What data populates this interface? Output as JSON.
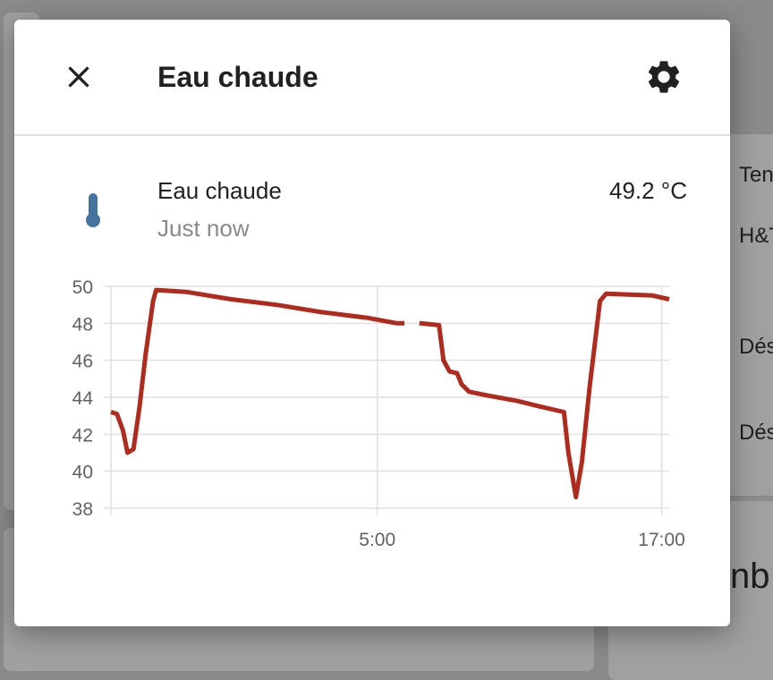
{
  "background": {
    "right_items": [
      "Ten",
      "H&T",
      "Dés",
      "Dés"
    ],
    "bottom_text": "nb"
  },
  "dialog": {
    "title": "Eau chaude",
    "close_icon": "close-icon",
    "settings_icon": "gear-icon"
  },
  "entity": {
    "icon": "thermometer-icon",
    "name": "Eau chaude",
    "last_changed": "Just now",
    "state": "49.2 °C"
  },
  "colors": {
    "line": "#b02a1e",
    "icon": "#44739e"
  },
  "chart_data": {
    "type": "line",
    "title": "",
    "xlabel": "",
    "ylabel": "",
    "ylim": [
      38,
      50
    ],
    "yticks": [
      50,
      48,
      46,
      44,
      42,
      40,
      38
    ],
    "xticks": [
      "5:00",
      "17:00"
    ],
    "grid": true,
    "series": [
      {
        "segments": [
          [
            [
              0,
              43.2
            ],
            [
              0.4,
              43.1
            ],
            [
              0.8,
              42.2
            ],
            [
              1.1,
              41.0
            ],
            [
              1.5,
              41.2
            ],
            [
              1.9,
              43.5
            ],
            [
              2.3,
              46.3
            ],
            [
              2.8,
              49.2
            ],
            [
              3.0,
              49.8
            ],
            [
              5.0,
              49.7
            ],
            [
              8.0,
              49.3
            ],
            [
              11.0,
              49.0
            ],
            [
              14.0,
              48.6
            ],
            [
              17.0,
              48.3
            ],
            [
              19.0,
              48.0
            ],
            [
              19.5,
              48.0
            ]
          ],
          [
            [
              20.5,
              48.0
            ],
            [
              21.8,
              47.9
            ],
            [
              22.1,
              46.0
            ],
            [
              22.5,
              45.4
            ],
            [
              23.0,
              45.3
            ],
            [
              23.3,
              44.7
            ],
            [
              23.8,
              44.3
            ],
            [
              25.0,
              44.1
            ],
            [
              27.0,
              43.8
            ],
            [
              28.5,
              43.5
            ],
            [
              30.1,
              43.2
            ],
            [
              30.4,
              41.0
            ],
            [
              30.9,
              38.6
            ],
            [
              31.3,
              40.5
            ],
            [
              31.8,
              44.5
            ],
            [
              32.5,
              49.2
            ],
            [
              32.9,
              49.6
            ],
            [
              36.0,
              49.5
            ],
            [
              37.1,
              49.3
            ]
          ]
        ]
      }
    ],
    "x_range": [
      0,
      37.1
    ],
    "xtick_positions": [
      17.7,
      36.6
    ]
  }
}
